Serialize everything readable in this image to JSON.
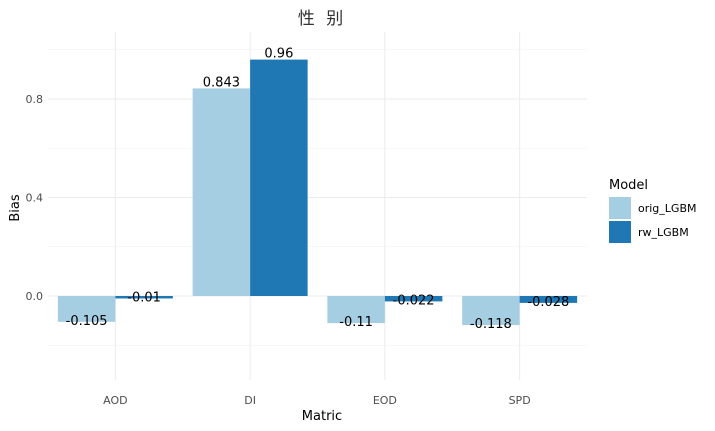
{
  "chart_data": {
    "type": "bar",
    "title": "性 别",
    "xlabel": "Matric",
    "ylabel": "Bias",
    "categories": [
      "AOD",
      "DI",
      "EOD",
      "SPD"
    ],
    "series": [
      {
        "name": "orig_LGBM",
        "color": "#a6cee3",
        "values": [
          -0.105,
          0.843,
          -0.11,
          -0.118
        ],
        "labels": [
          "-0.105",
          "0.843",
          "-0.11",
          "-0.118"
        ]
      },
      {
        "name": "rw_LGBM",
        "color": "#1f78b4",
        "values": [
          -0.01,
          0.96,
          -0.022,
          -0.028
        ],
        "labels": [
          "-0.01",
          "0.96",
          "-0.022",
          "-0.028"
        ]
      }
    ],
    "ylim": [
      -0.35,
      1.06
    ],
    "yticks": [
      0.0,
      0.4,
      0.8
    ],
    "ytick_labels": [
      "0.0",
      "0.4",
      "0.8"
    ],
    "grid": true,
    "legend": {
      "title": "Model",
      "position": "right"
    }
  }
}
